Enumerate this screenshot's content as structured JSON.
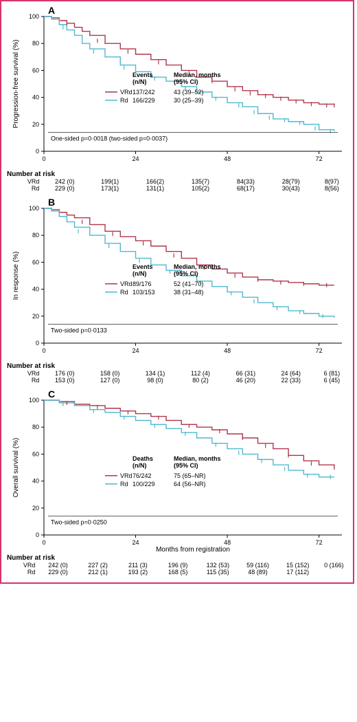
{
  "frame_border_color": "#d6336c",
  "colors": {
    "vrd": "#b1344b",
    "rd": "#4fb8cf",
    "axis": "#000000",
    "text": "#000000",
    "tick_mark": "#000000",
    "bg": "#ffffff"
  },
  "font": {
    "axis_label_size": 10,
    "tick_size": 9,
    "panel_letter_size": 14,
    "legend_size": 9,
    "risk_size": 9
  },
  "x_axis": {
    "min": 0,
    "max": 78,
    "ticks": [
      0,
      24,
      48,
      72
    ],
    "risk_ticksA": [
      0,
      12,
      24,
      36,
      48,
      60,
      72
    ],
    "final_label": "Months from registration"
  },
  "y_axis": {
    "min": 0,
    "max": 100,
    "ticks": [
      0,
      20,
      40,
      60,
      80,
      100
    ]
  },
  "panels": {
    "A": {
      "letter": "A",
      "y_label": "Progression-free survival (%)",
      "pvalue": "One-sided p=0·0018 (two-sided p=0·0037)",
      "legend": {
        "header_events": "Events (n/N)",
        "header_median": "Median, months (95% CI)",
        "vrd": {
          "label": "VRd",
          "events": "137/242",
          "median": "43 (39–52)"
        },
        "rd": {
          "label": "Rd",
          "events": "166/229",
          "median": "30 (25–39)"
        }
      },
      "vrd_curve": [
        [
          0,
          100
        ],
        [
          2,
          99
        ],
        [
          4,
          97
        ],
        [
          6,
          95
        ],
        [
          8,
          92
        ],
        [
          10,
          89
        ],
        [
          12,
          86
        ],
        [
          16,
          80
        ],
        [
          20,
          76
        ],
        [
          24,
          72
        ],
        [
          28,
          68
        ],
        [
          32,
          64
        ],
        [
          36,
          60
        ],
        [
          40,
          55
        ],
        [
          44,
          52
        ],
        [
          48,
          48
        ],
        [
          52,
          45
        ],
        [
          56,
          42
        ],
        [
          60,
          40
        ],
        [
          64,
          38
        ],
        [
          68,
          36
        ],
        [
          72,
          35
        ],
        [
          76,
          34
        ]
      ],
      "rd_curve": [
        [
          0,
          100
        ],
        [
          2,
          98
        ],
        [
          4,
          94
        ],
        [
          6,
          90
        ],
        [
          8,
          86
        ],
        [
          10,
          80
        ],
        [
          12,
          76
        ],
        [
          16,
          70
        ],
        [
          20,
          64
        ],
        [
          24,
          59
        ],
        [
          28,
          55
        ],
        [
          32,
          52
        ],
        [
          36,
          48
        ],
        [
          40,
          44
        ],
        [
          44,
          40
        ],
        [
          48,
          36
        ],
        [
          52,
          33
        ],
        [
          56,
          28
        ],
        [
          60,
          24
        ],
        [
          64,
          22
        ],
        [
          68,
          20
        ],
        [
          72,
          16
        ],
        [
          76,
          15
        ]
      ],
      "censor_vrd": [
        [
          6,
          95
        ],
        [
          14,
          82
        ],
        [
          22,
          74
        ],
        [
          30,
          66
        ],
        [
          38,
          58
        ],
        [
          44,
          52
        ],
        [
          50,
          46
        ],
        [
          54,
          43
        ],
        [
          58,
          41
        ],
        [
          62,
          39
        ],
        [
          66,
          37
        ],
        [
          70,
          35
        ],
        [
          74,
          34
        ],
        [
          76,
          34
        ]
      ],
      "censor_rd": [
        [
          5,
          92
        ],
        [
          13,
          74
        ],
        [
          21,
          62
        ],
        [
          29,
          54
        ],
        [
          37,
          47
        ],
        [
          45,
          39
        ],
        [
          51,
          34
        ],
        [
          55,
          29
        ],
        [
          59,
          25
        ],
        [
          63,
          23
        ],
        [
          67,
          21
        ],
        [
          71,
          17
        ],
        [
          75,
          15
        ]
      ],
      "risk": {
        "title": "Number at risk",
        "cols": [
          0,
          12,
          24,
          36,
          48,
          60,
          72
        ],
        "vrd_label": "VRd",
        "rd_label": "Rd",
        "vrd": [
          "242 (0)",
          "199(1)",
          "166(2)",
          "135(7)",
          "84(33)",
          "28(79)",
          "8(97)"
        ],
        "rd": [
          "229 (0)",
          "173(1)",
          "131(1)",
          "105(2)",
          "68(17)",
          "30(43)",
          "8(56)"
        ]
      }
    },
    "B": {
      "letter": "B",
      "y_label": "In response (%)",
      "pvalue": "Two-sided p=0·0133",
      "legend": {
        "header_events": "Events (n/N)",
        "header_median": "Median, months (95% CI)",
        "vrd": {
          "label": "VRd",
          "events": "89/176",
          "median": "52 (41–70)"
        },
        "rd": {
          "label": "Rd",
          "events": "103/153",
          "median": "38 (31–48)"
        }
      },
      "vrd_curve": [
        [
          0,
          100
        ],
        [
          2,
          99
        ],
        [
          4,
          97
        ],
        [
          6,
          95
        ],
        [
          8,
          93
        ],
        [
          12,
          88
        ],
        [
          16,
          83
        ],
        [
          20,
          79
        ],
        [
          24,
          76
        ],
        [
          28,
          72
        ],
        [
          32,
          68
        ],
        [
          36,
          63
        ],
        [
          40,
          58
        ],
        [
          44,
          55
        ],
        [
          48,
          52
        ],
        [
          52,
          49
        ],
        [
          56,
          47
        ],
        [
          60,
          46
        ],
        [
          64,
          45
        ],
        [
          68,
          44
        ],
        [
          72,
          43
        ],
        [
          76,
          43
        ]
      ],
      "rd_curve": [
        [
          0,
          100
        ],
        [
          2,
          98
        ],
        [
          4,
          94
        ],
        [
          6,
          90
        ],
        [
          8,
          86
        ],
        [
          12,
          80
        ],
        [
          16,
          74
        ],
        [
          20,
          68
        ],
        [
          24,
          63
        ],
        [
          28,
          58
        ],
        [
          32,
          54
        ],
        [
          36,
          50
        ],
        [
          40,
          46
        ],
        [
          44,
          42
        ],
        [
          48,
          38
        ],
        [
          52,
          34
        ],
        [
          56,
          30
        ],
        [
          60,
          27
        ],
        [
          64,
          24
        ],
        [
          68,
          22
        ],
        [
          72,
          20
        ],
        [
          76,
          19
        ]
      ],
      "censor_vrd": [
        [
          10,
          90
        ],
        [
          18,
          81
        ],
        [
          26,
          74
        ],
        [
          34,
          65
        ],
        [
          42,
          56
        ],
        [
          50,
          50
        ],
        [
          56,
          47
        ],
        [
          62,
          45
        ],
        [
          68,
          44
        ],
        [
          74,
          43
        ]
      ],
      "censor_rd": [
        [
          9,
          83
        ],
        [
          17,
          72
        ],
        [
          25,
          61
        ],
        [
          33,
          53
        ],
        [
          41,
          45
        ],
        [
          49,
          37
        ],
        [
          55,
          31
        ],
        [
          61,
          26
        ],
        [
          67,
          23
        ],
        [
          73,
          20
        ]
      ],
      "risk": {
        "title": "Number at risk",
        "cols": [
          0,
          12,
          24,
          36,
          48,
          60,
          72
        ],
        "vrd_label": "VRd",
        "rd_label": "Rd",
        "vrd": [
          "176 (0)",
          "158 (0)",
          "134 (1)",
          "112 (4)",
          "66 (31)",
          "24 (64)",
          "6 (81)"
        ],
        "rd": [
          "153 (0)",
          "127 (0)",
          "98 (0)",
          "80 (2)",
          "46 (20)",
          "22 (33)",
          "6 (45)"
        ]
      }
    },
    "C": {
      "letter": "C",
      "y_label": "Overall survival (%)",
      "pvalue": "Two-sided p=0·0250",
      "legend": {
        "header_events": "Deaths (n/N)",
        "header_median": "Median, months (95% CI)",
        "vrd": {
          "label": "VRd",
          "events": "76/242",
          "median": "75 (65–NR)"
        },
        "rd": {
          "label": "Rd",
          "events": "100/229",
          "median": "64 (56–NR)"
        }
      },
      "vrd_curve": [
        [
          0,
          100
        ],
        [
          4,
          99
        ],
        [
          8,
          97
        ],
        [
          12,
          96
        ],
        [
          16,
          94
        ],
        [
          20,
          92
        ],
        [
          24,
          90
        ],
        [
          28,
          88
        ],
        [
          32,
          85
        ],
        [
          36,
          82
        ],
        [
          40,
          80
        ],
        [
          44,
          78
        ],
        [
          48,
          75
        ],
        [
          52,
          72
        ],
        [
          56,
          68
        ],
        [
          60,
          64
        ],
        [
          64,
          59
        ],
        [
          68,
          55
        ],
        [
          72,
          52
        ],
        [
          76,
          50
        ]
      ],
      "rd_curve": [
        [
          0,
          100
        ],
        [
          4,
          98
        ],
        [
          8,
          96
        ],
        [
          12,
          93
        ],
        [
          16,
          91
        ],
        [
          20,
          88
        ],
        [
          24,
          85
        ],
        [
          28,
          82
        ],
        [
          32,
          79
        ],
        [
          36,
          76
        ],
        [
          40,
          72
        ],
        [
          44,
          68
        ],
        [
          48,
          64
        ],
        [
          52,
          60
        ],
        [
          56,
          56
        ],
        [
          60,
          52
        ],
        [
          64,
          48
        ],
        [
          68,
          45
        ],
        [
          72,
          43
        ],
        [
          76,
          43
        ]
      ],
      "censor_vrd": [
        [
          6,
          98
        ],
        [
          14,
          95
        ],
        [
          22,
          91
        ],
        [
          30,
          87
        ],
        [
          38,
          81
        ],
        [
          46,
          77
        ],
        [
          52,
          72
        ],
        [
          58,
          66
        ],
        [
          64,
          59
        ],
        [
          70,
          53
        ],
        [
          76,
          50
        ]
      ],
      "censor_rd": [
        [
          5,
          97
        ],
        [
          13,
          92
        ],
        [
          21,
          87
        ],
        [
          29,
          81
        ],
        [
          37,
          75
        ],
        [
          45,
          67
        ],
        [
          51,
          61
        ],
        [
          57,
          55
        ],
        [
          63,
          49
        ],
        [
          69,
          44
        ],
        [
          75,
          43
        ]
      ],
      "risk": {
        "title": "Number at risk",
        "cols": [
          0,
          12,
          24,
          36,
          48,
          60,
          72,
          84
        ],
        "vrd_label": "VRd",
        "rd_label": "Rd",
        "vrd": [
          "242 (0)",
          "227 (2)",
          "211 (3)",
          "196 (9)",
          "132 (53)",
          "59 (116)",
          "15 (152)",
          "0 (166)"
        ],
        "rd": [
          "229 (0)",
          "212 (1)",
          "193 (2)",
          "168 (5)",
          "115 (35)",
          "48 (89)",
          "17 (112)",
          ""
        ]
      }
    }
  }
}
